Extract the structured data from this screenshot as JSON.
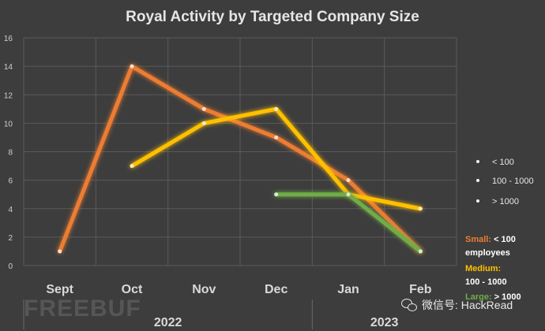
{
  "chart_data": {
    "type": "line",
    "title": "Royal Activity by Targeted Company Size",
    "categories": [
      "Sept",
      "Oct",
      "Nov",
      "Dec",
      "Jan",
      "Feb"
    ],
    "year_labels": [
      "2022",
      "2023"
    ],
    "ylim": [
      0,
      16
    ],
    "yticks": [
      0,
      2,
      4,
      6,
      8,
      10,
      12,
      14,
      16
    ],
    "grid": true,
    "legend_position": "right",
    "series": [
      {
        "name": "< 100",
        "color": "#ed7d31",
        "values": [
          1,
          14,
          11,
          9,
          6,
          1
        ]
      },
      {
        "name": "100 - 1000",
        "color": "#ffc000",
        "values": [
          null,
          7,
          10,
          11,
          5,
          4
        ]
      },
      {
        "name": "> 1000",
        "color": "#70ad47",
        "values": [
          null,
          null,
          null,
          5,
          5,
          1
        ]
      }
    ]
  },
  "notes": {
    "small_label": "Small:",
    "small_text": " < 100",
    "small_text2": "employees",
    "medium_label": "Medium:",
    "medium_text": "100 - 1000",
    "large_label": "Large:",
    "large_text": " > 1000",
    "small_color": "#ed7d31",
    "medium_color": "#ffc000",
    "large_color": "#70ad47"
  },
  "watermarks": {
    "left": "FREEBUF",
    "right": "微信号: HackRead"
  }
}
